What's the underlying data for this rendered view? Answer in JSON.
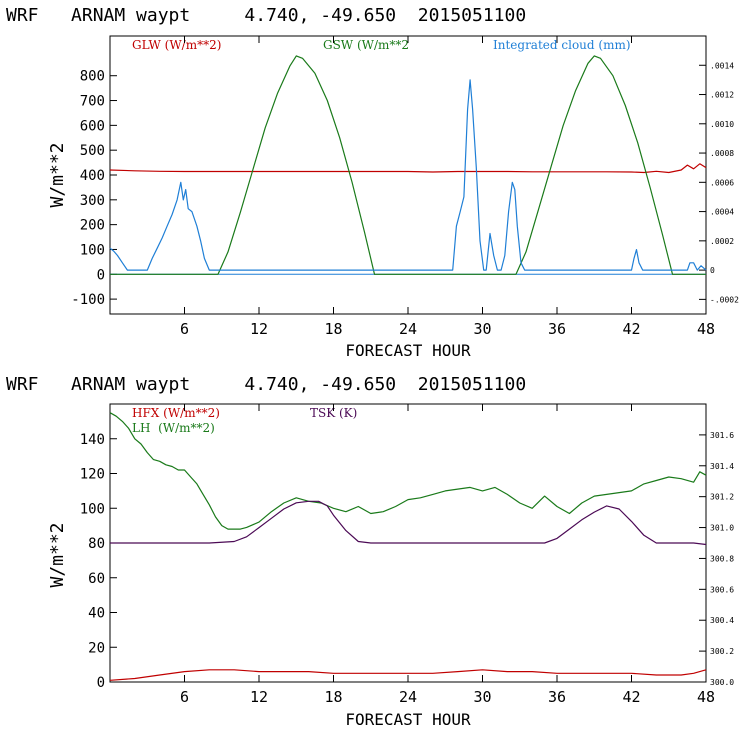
{
  "chart_data": [
    {
      "type": "line",
      "title": "WRF   ARNAM waypt     4.740, -49.650  2015051100",
      "xlabel": "FORECAST HOUR",
      "ylabel": "W/m**2",
      "xlim": [
        0,
        48
      ],
      "ylim": [
        -160,
        960
      ],
      "y2lim": [
        -0.0003,
        0.0016
      ],
      "grid": false,
      "legend_placement": "top",
      "x_ticks": [
        6,
        12,
        18,
        24,
        30,
        36,
        42,
        48
      ],
      "x_tick_labels": [
        "6",
        "12",
        "18",
        "24",
        "30",
        "36",
        "42",
        "48"
      ],
      "y_ticks": [
        -100,
        0,
        100,
        200,
        300,
        400,
        500,
        600,
        700,
        800
      ],
      "y_tick_labels": [
        "-100",
        "0",
        "100",
        "200",
        "300",
        "400",
        "500",
        "600",
        "700",
        "800"
      ],
      "y2_ticks": [
        -0.0002,
        0,
        0.0002,
        0.0004,
        0.0006,
        0.0008,
        0.001,
        0.0012,
        0.0014
      ],
      "y2_tick_labels": [
        "-.0002",
        "0",
        ".0002",
        ".0004",
        ".0006",
        ".0008",
        ".0010",
        ".0012",
        ".0014"
      ],
      "series": [
        {
          "name": "GLW (W/m**2)",
          "color": "#c00000",
          "axis": "left",
          "x": [
            0,
            2,
            4,
            6,
            8,
            10,
            12,
            14,
            16,
            18,
            20,
            22,
            24,
            26,
            28,
            30,
            32,
            34,
            36,
            38,
            40,
            42,
            43,
            44,
            45,
            46,
            46.5,
            47,
            47.5,
            48
          ],
          "values": [
            420,
            417,
            415,
            414,
            414,
            414,
            414,
            414,
            414,
            414,
            414,
            414,
            414,
            412,
            414,
            414,
            414,
            413,
            413,
            413,
            413,
            412,
            410,
            415,
            410,
            420,
            440,
            425,
            445,
            430
          ]
        },
        {
          "name": "GSW (W/m**2",
          "color": "#1a7a1a",
          "axis": "left",
          "x": [
            0,
            8.7,
            9.5,
            10.5,
            11.5,
            12.5,
            13.5,
            14.5,
            15.0,
            15.5,
            16.5,
            17.5,
            18.5,
            19.5,
            20.5,
            21.3,
            26,
            32.7,
            33.5,
            34.5,
            35.5,
            36.5,
            37.5,
            38.5,
            39.0,
            39.5,
            40.5,
            41.5,
            42.5,
            43.5,
            44.5,
            45.3,
            48
          ],
          "values": [
            0,
            0,
            90,
            250,
            420,
            590,
            730,
            840,
            880,
            870,
            810,
            700,
            550,
            370,
            170,
            0,
            0,
            0,
            90,
            260,
            430,
            600,
            740,
            850,
            880,
            870,
            800,
            680,
            530,
            350,
            160,
            0,
            0
          ]
        },
        {
          "name": "Integrated cloud (mm)",
          "color": "#1f7fd6",
          "axis": "right",
          "x": [
            0,
            0.3,
            0.6,
            1.0,
            1.4,
            1.8,
            3.0,
            3.4,
            3.8,
            4.2,
            4.6,
            5.0,
            5.4,
            5.7,
            5.9,
            6.1,
            6.3,
            6.6,
            7.0,
            7.3,
            7.6,
            8.0,
            27.6,
            27.9,
            28.2,
            28.5,
            28.8,
            29.0,
            29.2,
            29.5,
            29.8,
            30.1,
            30.3,
            30.6,
            30.9,
            31.2,
            31.5,
            31.8,
            32.1,
            32.4,
            32.6,
            32.8,
            33.1,
            33.4,
            33.7,
            42.0,
            42.2,
            42.4,
            42.6,
            42.9,
            46.5,
            46.7,
            47.0,
            47.3,
            47.6,
            48
          ],
          "values": [
            0.00015,
            0.00013,
            0.0001,
            5e-05,
            0.0,
            0.0,
            0.0,
            8e-05,
            0.00015,
            0.00022,
            0.0003,
            0.00038,
            0.00048,
            0.0006,
            0.00048,
            0.00055,
            0.00042,
            0.0004,
            0.0003,
            0.0002,
            8e-05,
            0.0,
            0.0,
            0.0003,
            0.0004,
            0.0005,
            0.0011,
            0.0013,
            0.0011,
            0.0007,
            0.0002,
            0.0,
            0.0,
            0.00025,
            0.0001,
            0.0,
            0.0,
            0.0001,
            0.0004,
            0.0006,
            0.00055,
            0.0003,
            5e-05,
            0.0,
            0.0,
            0.0,
            8e-05,
            0.00014,
            5e-05,
            0.0,
            0.0,
            5e-05,
            5e-05,
            0.0,
            3e-05,
            0.0
          ]
        }
      ]
    },
    {
      "type": "line",
      "title": "WRF   ARNAM waypt     4.740, -49.650  2015051100",
      "xlabel": "FORECAST HOUR",
      "ylabel": "W/m**2",
      "xlim": [
        0,
        48
      ],
      "ylim": [
        0,
        160
      ],
      "y2lim": [
        300.0,
        301.8
      ],
      "grid": false,
      "legend_placement": "top",
      "x_ticks": [
        6,
        12,
        18,
        24,
        30,
        36,
        42,
        48
      ],
      "x_tick_labels": [
        "6",
        "12",
        "18",
        "24",
        "30",
        "36",
        "42",
        "48"
      ],
      "y_ticks": [
        0,
        20,
        40,
        60,
        80,
        100,
        120,
        140
      ],
      "y_tick_labels": [
        "0",
        "20",
        "40",
        "60",
        "80",
        "100",
        "120",
        "140"
      ],
      "y2_ticks": [
        300.0,
        300.2,
        300.4,
        300.6,
        300.8,
        301.0,
        301.2,
        301.4,
        301.6
      ],
      "y2_tick_labels": [
        "300.0",
        "300.2",
        "300.4",
        "300.6",
        "300.8",
        "301.0",
        "301.2",
        "301.4",
        "301.6"
      ],
      "series": [
        {
          "name": "HFX (W/m**2)",
          "color": "#c00000",
          "axis": "left",
          "x": [
            0,
            2,
            4,
            6,
            8,
            10,
            12,
            14,
            16,
            18,
            20,
            22,
            24,
            26,
            28,
            30,
            32,
            34,
            36,
            38,
            40,
            42,
            44,
            46,
            47,
            48
          ],
          "values": [
            1,
            2,
            4,
            6,
            7,
            7,
            6,
            6,
            6,
            5,
            5,
            5,
            5,
            5,
            6,
            7,
            6,
            6,
            5,
            5,
            5,
            5,
            4,
            4,
            5,
            7
          ]
        },
        {
          "name": "LH  (W/m**2)",
          "color": "#1a7a1a",
          "axis": "left",
          "x": [
            0,
            0.5,
            1,
            1.5,
            2,
            2.5,
            3,
            3.5,
            4,
            4.5,
            5,
            5.5,
            6,
            6.5,
            7,
            7.5,
            8,
            8.5,
            9,
            9.5,
            10,
            10.5,
            11,
            12,
            13,
            14,
            15,
            16,
            17,
            18,
            19,
            20,
            21,
            22,
            23,
            24,
            25,
            26,
            27,
            28,
            29,
            30,
            31,
            32,
            33,
            34,
            35,
            36,
            37,
            38,
            39,
            40,
            41,
            42,
            43,
            44,
            45,
            46,
            47,
            47.5,
            48
          ],
          "values": [
            155,
            153,
            150,
            146,
            140,
            137,
            132,
            128,
            127,
            125,
            124,
            122,
            122,
            118,
            114,
            108,
            102,
            95,
            90,
            88,
            88,
            88,
            89,
            92,
            98,
            103,
            106,
            104,
            103,
            100,
            98,
            101,
            97,
            98,
            101,
            105,
            106,
            108,
            110,
            111,
            112,
            110,
            112,
            108,
            103,
            100,
            107,
            101,
            97,
            103,
            107,
            108,
            109,
            110,
            114,
            116,
            118,
            117,
            115,
            121,
            119
          ]
        },
        {
          "name": "TSK (K)",
          "color": "#4b0a55",
          "axis": "right",
          "x": [
            0,
            2,
            4,
            6,
            8,
            10,
            11,
            12,
            13,
            14,
            15,
            16,
            16.8,
            17.5,
            18,
            19,
            20,
            21,
            24,
            28,
            32,
            35,
            36,
            37,
            38,
            39,
            40,
            41,
            42,
            43,
            44,
            46,
            47,
            48
          ],
          "values": [
            300.9,
            300.9,
            300.9,
            300.9,
            300.9,
            300.91,
            300.94,
            301.0,
            301.06,
            301.12,
            301.16,
            301.17,
            301.17,
            301.14,
            301.08,
            300.98,
            300.91,
            300.9,
            300.9,
            300.9,
            300.9,
            300.9,
            300.93,
            300.99,
            301.05,
            301.1,
            301.14,
            301.12,
            301.04,
            300.95,
            300.9,
            300.9,
            300.9,
            300.89
          ]
        }
      ]
    }
  ]
}
